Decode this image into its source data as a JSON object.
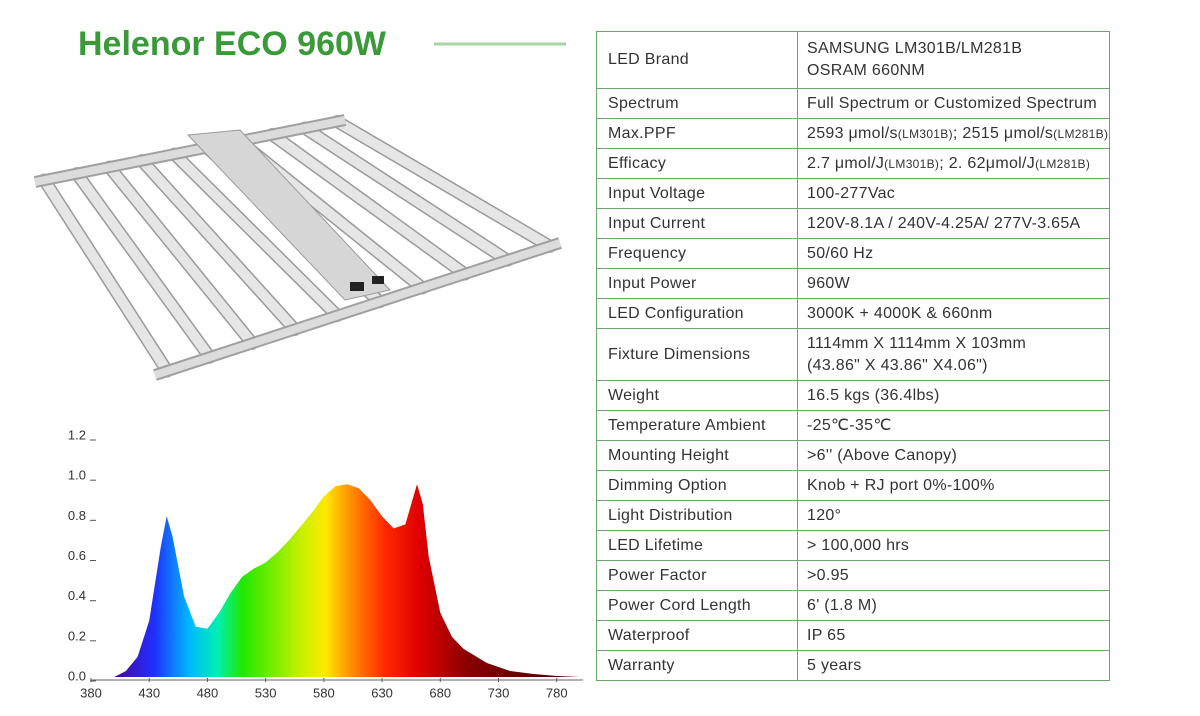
{
  "header": {
    "title": "Helenor ECO 960W"
  },
  "table": {
    "rows": [
      {
        "label": "LED Brand",
        "value": [
          [
            "SAMSUNG LM301B/LM281B"
          ],
          [
            "OSRAM 660NM"
          ]
        ]
      },
      {
        "label": "Spectrum",
        "value": [
          [
            "Full Spectrum or Customized Spectrum"
          ]
        ]
      },
      {
        "label": "Max.PPF",
        "value": [
          [
            "2593 μmol/s",
            {
              "small": "(LM301B)"
            },
            "; 2515 μmol/s",
            {
              "small": "(LM281B)"
            }
          ]
        ]
      },
      {
        "label": "Efficacy",
        "value": [
          [
            "2.7 μmol/J",
            {
              "small": "(LM301B)"
            },
            "; 2. 62μmol/J",
            {
              "small": "(LM281B)"
            }
          ]
        ]
      },
      {
        "label": "Input Voltage",
        "value": [
          [
            "100-277Vac"
          ]
        ]
      },
      {
        "label": "Input Current",
        "value": [
          [
            "120V-8.1A / 240V-4.25A/ 277V-3.65A"
          ]
        ]
      },
      {
        "label": "Frequency",
        "value": [
          [
            "50/60 Hz"
          ]
        ]
      },
      {
        "label": "Input Power",
        "value": [
          [
            "960W"
          ]
        ]
      },
      {
        "label": "LED Configuration",
        "value": [
          [
            "3000K + 4000K & 660nm"
          ]
        ]
      },
      {
        "label": "Fixture Dimensions",
        "value": [
          [
            "1114mm X 1114mm X 103mm"
          ],
          [
            "(43.86\" X 43.86\" X4.06\")"
          ]
        ]
      },
      {
        "label": "Weight",
        "value": [
          [
            "16.5 kgs (36.4lbs)"
          ]
        ]
      },
      {
        "label": "Temperature Ambient",
        "value": [
          [
            "-25℃-35℃"
          ]
        ]
      },
      {
        "label": "Mounting Height",
        "value": [
          [
            ">6'' (Above Canopy)"
          ]
        ]
      },
      {
        "label": "Dimming Option",
        "value": [
          [
            "Knob + RJ port 0%-100%"
          ]
        ]
      },
      {
        "label": "Light Distribution",
        "value": [
          [
            "120°"
          ]
        ]
      },
      {
        "label": "LED Lifetime",
        "value": [
          [
            "> 100,000 hrs"
          ]
        ]
      },
      {
        "label": "Power Factor",
        "value": [
          [
            ">0.95"
          ]
        ]
      },
      {
        "label": "Power Cord Length",
        "value": [
          [
            "6' (1.8 M)"
          ]
        ]
      },
      {
        "label": "Waterproof",
        "value": [
          [
            "IP 65"
          ]
        ]
      },
      {
        "label": "Warranty",
        "value": [
          [
            "5 years"
          ]
        ]
      }
    ]
  },
  "chart_data": {
    "type": "area",
    "x": [
      400,
      410,
      420,
      430,
      440,
      445,
      450,
      460,
      470,
      480,
      490,
      500,
      510,
      520,
      530,
      540,
      550,
      560,
      570,
      580,
      590,
      600,
      610,
      620,
      630,
      640,
      650,
      655,
      660,
      665,
      670,
      680,
      690,
      700,
      720,
      740,
      760,
      780,
      800
    ],
    "values": [
      0,
      0.03,
      0.1,
      0.28,
      0.65,
      0.8,
      0.7,
      0.4,
      0.25,
      0.24,
      0.32,
      0.42,
      0.5,
      0.54,
      0.57,
      0.62,
      0.68,
      0.75,
      0.82,
      0.9,
      0.95,
      0.96,
      0.94,
      0.88,
      0.8,
      0.74,
      0.76,
      0.86,
      0.96,
      0.86,
      0.6,
      0.32,
      0.2,
      0.14,
      0.07,
      0.03,
      0.015,
      0.005,
      0
    ],
    "xlim": [
      380,
      800
    ],
    "ylim": [
      0,
      1.2
    ],
    "xticks": [
      380,
      430,
      480,
      530,
      580,
      630,
      680,
      730,
      780
    ],
    "yticks": [
      {
        "value": 0,
        "label": "0.0"
      },
      0.2,
      0.4,
      0.6,
      0.8,
      {
        "value": 1,
        "label": "1.0"
      },
      1.2
    ]
  }
}
